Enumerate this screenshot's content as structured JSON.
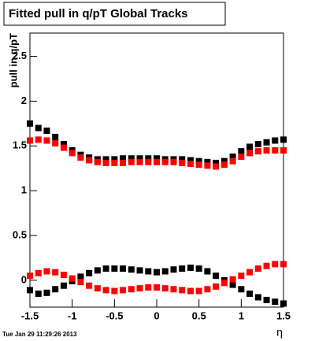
{
  "chart_data": {
    "type": "scatter",
    "title": "Fitted pull in q/pT  Global Tracks",
    "y_label": "pull in q/pT",
    "x_label": "η",
    "timestamp": "Tue Jan 29 11:29:26 2013",
    "xlim": [
      -1.5,
      1.5
    ],
    "ylim": [
      -0.3,
      2.76
    ],
    "xticks": [
      -1.5,
      -1,
      -0.5,
      0,
      0.5,
      1,
      1.5
    ],
    "yticks": [
      0,
      0.5,
      1,
      1.5,
      2,
      2.5
    ],
    "grid": false,
    "x": [
      -1.5,
      -1.4,
      -1.3,
      -1.2,
      -1.1,
      -1.0,
      -0.9,
      -0.8,
      -0.7,
      -0.6,
      -0.5,
      -0.4,
      -0.3,
      -0.2,
      -0.1,
      0,
      0.1,
      0.2,
      0.3,
      0.4,
      0.5,
      0.6,
      0.7,
      0.8,
      0.9,
      1.0,
      1.1,
      1.2,
      1.3,
      1.4,
      1.5
    ],
    "series": [
      {
        "color": "#000000",
        "values": [
          1.75,
          1.7,
          1.67,
          1.6,
          1.52,
          1.45,
          1.4,
          1.37,
          1.35,
          1.35,
          1.35,
          1.36,
          1.36,
          1.36,
          1.36,
          1.36,
          1.35,
          1.35,
          1.35,
          1.34,
          1.33,
          1.32,
          1.31,
          1.33,
          1.38,
          1.44,
          1.49,
          1.52,
          1.54,
          1.56,
          1.57
        ]
      },
      {
        "color": "#000000",
        "values": [
          -0.11,
          -0.15,
          -0.14,
          -0.1,
          -0.06,
          -0.01,
          0.04,
          0.08,
          0.11,
          0.13,
          0.13,
          0.13,
          0.12,
          0.11,
          0.1,
          0.09,
          0.1,
          0.12,
          0.13,
          0.14,
          0.13,
          0.1,
          0.05,
          0.0,
          -0.05,
          -0.1,
          -0.15,
          -0.19,
          -0.22,
          -0.24,
          -0.26
        ]
      },
      {
        "color": "#ff0000",
        "values": [
          1.56,
          1.57,
          1.56,
          1.53,
          1.48,
          1.42,
          1.37,
          1.34,
          1.32,
          1.31,
          1.31,
          1.31,
          1.32,
          1.32,
          1.32,
          1.32,
          1.32,
          1.32,
          1.31,
          1.3,
          1.29,
          1.28,
          1.27,
          1.29,
          1.33,
          1.38,
          1.42,
          1.44,
          1.45,
          1.45,
          1.45
        ]
      },
      {
        "color": "#ff0000",
        "values": [
          0.05,
          0.08,
          0.1,
          0.09,
          0.06,
          0.02,
          -0.02,
          -0.06,
          -0.09,
          -0.11,
          -0.12,
          -0.11,
          -0.1,
          -0.09,
          -0.08,
          -0.08,
          -0.09,
          -0.1,
          -0.11,
          -0.12,
          -0.12,
          -0.1,
          -0.07,
          -0.03,
          0.01,
          0.05,
          0.09,
          0.13,
          0.16,
          0.18,
          0.18
        ]
      }
    ]
  }
}
